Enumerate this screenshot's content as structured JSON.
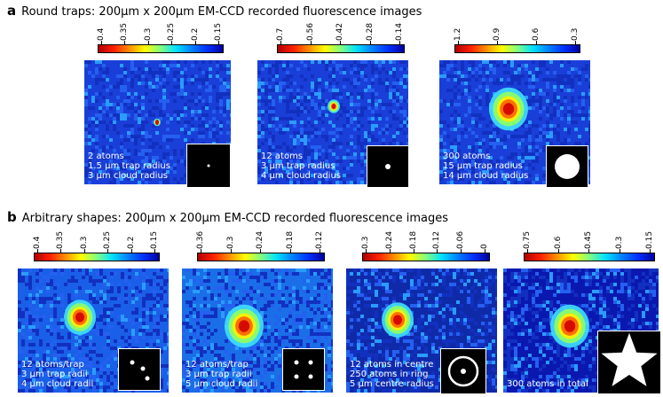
{
  "section_a": {
    "letter": "a",
    "title": "Round traps: 200µm x 200µm EM-CCD recorded fluorescence images"
  },
  "section_b": {
    "letter": "b",
    "title": "Arbitrary shapes: 200µm x 200µm EM-CCD recorded fluorescence images"
  },
  "panels": [
    {
      "ticks": [
        "0.4",
        "0.35",
        "0.3",
        "0.25",
        "0.2",
        "0.15"
      ],
      "lines": [
        "2 atoms",
        "1.5 µm trap radius",
        "3 µm cloud radius"
      ],
      "bg": "#1a3fd8"
    },
    {
      "ticks": [
        "0.7",
        "0.56",
        "0.42",
        "0.28",
        "0.14"
      ],
      "lines": [
        "12 atoms",
        "3 µm trap radius",
        "4 µm cloud radius"
      ],
      "bg": "#1a3fd8"
    },
    {
      "ticks": [
        "1.2",
        "0.9",
        "0.6",
        "0.3"
      ],
      "lines": [
        "300 atoms",
        "15 µm trap radius",
        "14 µm cloud radius"
      ],
      "bg": "#1a3fd8"
    },
    {
      "ticks": [
        "0.4",
        "0.35",
        "0.3",
        "0.25",
        "0.2",
        "0.15"
      ],
      "lines": [
        "12 atoms/trap",
        "3 µm trap radii",
        "4 µm cloud radii"
      ],
      "bg": "#1a5fe8"
    },
    {
      "ticks": [
        "0.36",
        "0.3",
        "0.24",
        "0.18",
        "0.12"
      ],
      "lines": [
        "12 atoms/trap",
        "3 µm trap radii",
        "5 µm cloud radii"
      ],
      "bg": "#1a6fe8"
    },
    {
      "ticks": [
        "0.3",
        "0.24",
        "0.18",
        "0.12",
        "0.06",
        "0"
      ],
      "lines": [
        "12 atoms in centre",
        "250 atoms in ring",
        "5 µm centre radius"
      ],
      "bg": "#0f2aa8"
    },
    {
      "ticks": [
        "0.75",
        "0.6",
        "0.45",
        "0.3",
        "0.15"
      ],
      "lines": [
        "300 atoms in total"
      ],
      "bg": "#0a18b0"
    }
  ]
}
